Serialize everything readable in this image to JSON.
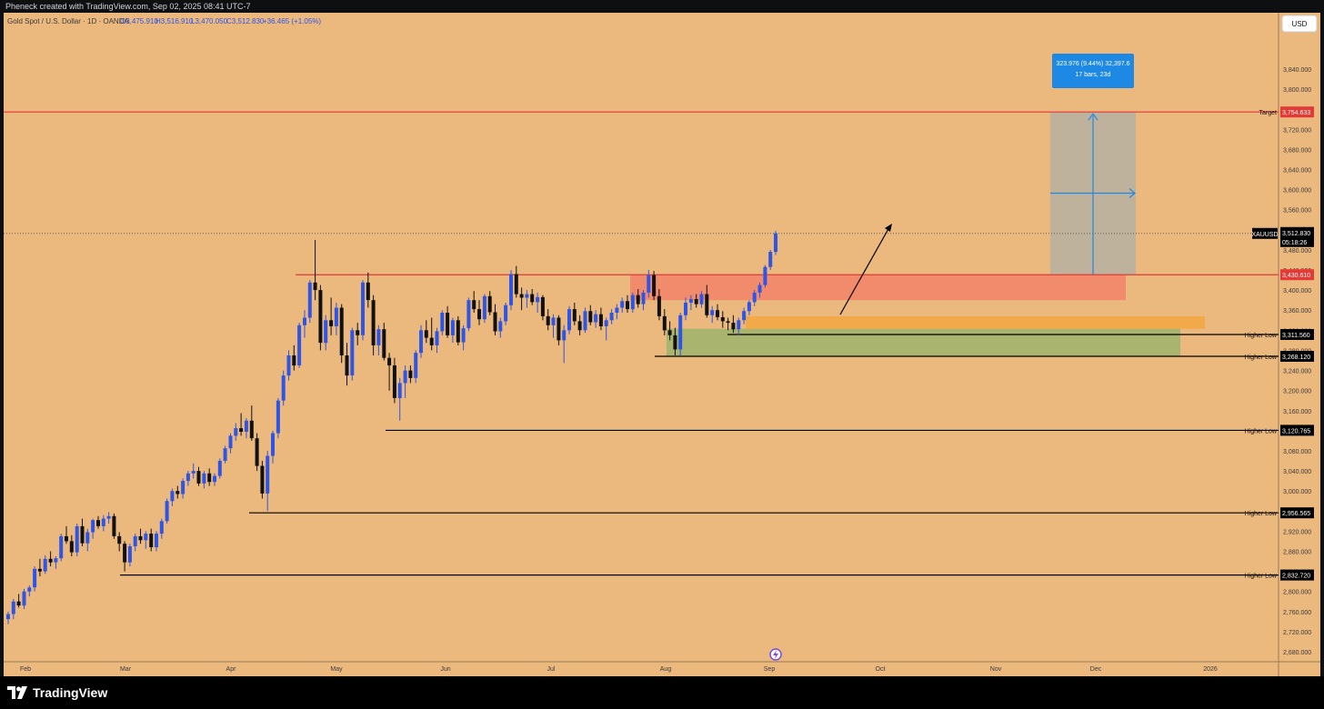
{
  "header": {
    "attribution": "Pheneck created with TradingView.com, Sep 02, 2025 08:41 UTC-7",
    "symbol_line": "Gold Spot / U.S. Dollar · 1D · OANDA",
    "open": "O3,475.910",
    "high": "H3,516.910",
    "low": "L3,470.050",
    "close": "C3,512.830",
    "change": "+36.465 (+1.05%)"
  },
  "currency_button": "USD",
  "footer": {
    "brand": "TradingView"
  },
  "colors": {
    "background": "#ebb87e",
    "bull": "#2f55e6",
    "bear": "#111111",
    "target": "#e53935",
    "supply_zone": "#f28a6c",
    "demand_zone": "#a9b46e",
    "orange_zone": "#f1a94a",
    "projection": "#b7b0a2",
    "measure_blue": "#1e88e5"
  },
  "chart_data": {
    "type": "candlestick",
    "ylim": [
      2660,
      3880
    ],
    "y_ticks": [
      2680,
      2720,
      2760,
      2800,
      2840,
      2880,
      2920,
      2960,
      3000,
      3040,
      3080,
      3120,
      3160,
      3200,
      3240,
      3280,
      3320,
      3360,
      3400,
      3440,
      3480,
      3520,
      3560,
      3600,
      3640,
      3680,
      3720,
      3760,
      3800,
      3840
    ],
    "x_labels": [
      "Feb",
      "Mar",
      "Apr",
      "May",
      "Jun",
      "Jul",
      "Aug",
      "Sep",
      "Oct",
      "Nov",
      "Dec",
      "2026"
    ],
    "current_price": {
      "symbol": "XAUUSD",
      "value": "3,512.830",
      "countdown": "05:18:26"
    },
    "levels": [
      {
        "name": "Target",
        "label": "Target",
        "value": 3754.633,
        "value_text": "3,754.633"
      },
      {
        "name": "resistance",
        "label": "",
        "value": 3430.61,
        "value_text": "3,430.610"
      },
      {
        "name": "higher-low-1",
        "label": "Higher Low",
        "value": 3311.56,
        "value_text": "3,311.560"
      },
      {
        "name": "higher-low-2",
        "label": "Higher Low",
        "value": 3268.12,
        "value_text": "3,268.120"
      },
      {
        "name": "higher-low-3",
        "label": "Higher Low",
        "value": 3120.765,
        "value_text": "3,120.765"
      },
      {
        "name": "higher-low-4",
        "label": "Higher Low",
        "value": 2956.565,
        "value_text": "2,956.565"
      },
      {
        "name": "higher-low-5",
        "label": "Higher Low",
        "value": 2832.72,
        "value_text": "2,832.720"
      }
    ],
    "measure": {
      "line1": "323.976 (9.44%) 32,397.6",
      "line2": "17 bars, 23d"
    },
    "series": [
      {
        "name": "",
        "ohlc": [
          [
            2745,
            2760,
            2735,
            2755
          ],
          [
            2755,
            2785,
            2745,
            2780
          ],
          [
            2780,
            2795,
            2768,
            2772
          ],
          [
            2772,
            2805,
            2765,
            2800
          ],
          [
            2800,
            2812,
            2790,
            2808
          ],
          [
            2808,
            2850,
            2800,
            2845
          ],
          [
            2845,
            2865,
            2830,
            2840
          ],
          [
            2840,
            2872,
            2835,
            2865
          ],
          [
            2865,
            2880,
            2850,
            2858
          ],
          [
            2858,
            2870,
            2845,
            2866
          ],
          [
            2866,
            2915,
            2860,
            2910
          ],
          [
            2910,
            2930,
            2895,
            2900
          ],
          [
            2900,
            2912,
            2870,
            2878
          ],
          [
            2878,
            2935,
            2870,
            2930
          ],
          [
            2930,
            2945,
            2890,
            2896
          ],
          [
            2896,
            2925,
            2880,
            2918
          ],
          [
            2918,
            2945,
            2905,
            2942
          ],
          [
            2942,
            2950,
            2925,
            2930
          ],
          [
            2930,
            2952,
            2920,
            2945
          ],
          [
            2945,
            2958,
            2935,
            2950
          ],
          [
            2950,
            2955,
            2905,
            2910
          ],
          [
            2910,
            2918,
            2880,
            2895
          ],
          [
            2895,
            2900,
            2840,
            2858
          ],
          [
            2858,
            2895,
            2850,
            2890
          ],
          [
            2890,
            2915,
            2880,
            2910
          ],
          [
            2910,
            2925,
            2895,
            2902
          ],
          [
            2902,
            2920,
            2885,
            2915
          ],
          [
            2915,
            2925,
            2880,
            2888
          ],
          [
            2888,
            2920,
            2880,
            2915
          ],
          [
            2915,
            2945,
            2905,
            2940
          ],
          [
            2940,
            2985,
            2935,
            2980
          ],
          [
            2980,
            3005,
            2970,
            3000
          ],
          [
            3000,
            3010,
            2985,
            2994
          ],
          [
            2994,
            3025,
            2985,
            3020
          ],
          [
            3020,
            3040,
            3010,
            3035
          ],
          [
            3035,
            3055,
            3025,
            3040
          ],
          [
            3040,
            3048,
            3010,
            3015
          ],
          [
            3015,
            3040,
            3005,
            3035
          ],
          [
            3035,
            3045,
            3010,
            3018
          ],
          [
            3018,
            3035,
            3010,
            3030
          ],
          [
            3030,
            3065,
            3025,
            3060
          ],
          [
            3060,
            3090,
            3055,
            3085
          ],
          [
            3085,
            3115,
            3075,
            3110
          ],
          [
            3110,
            3135,
            3100,
            3125
          ],
          [
            3125,
            3155,
            3110,
            3118
          ],
          [
            3118,
            3145,
            3105,
            3140
          ],
          [
            3140,
            3170,
            3100,
            3105
          ],
          [
            3105,
            3115,
            3040,
            3050
          ],
          [
            3050,
            3060,
            2985,
            2995
          ],
          [
            2995,
            3080,
            2960,
            3070
          ],
          [
            3070,
            3120,
            3055,
            3115
          ],
          [
            3115,
            3185,
            3105,
            3180
          ],
          [
            3180,
            3240,
            3170,
            3230
          ],
          [
            3230,
            3280,
            3220,
            3270
          ],
          [
            3270,
            3290,
            3240,
            3250
          ],
          [
            3250,
            3335,
            3245,
            3330
          ],
          [
            3330,
            3360,
            3305,
            3345
          ],
          [
            3345,
            3420,
            3335,
            3415
          ],
          [
            3415,
            3500,
            3380,
            3400
          ],
          [
            3400,
            3410,
            3280,
            3295
          ],
          [
            3295,
            3350,
            3280,
            3340
          ],
          [
            3340,
            3385,
            3310,
            3328
          ],
          [
            3328,
            3375,
            3310,
            3365
          ],
          [
            3365,
            3372,
            3255,
            3270
          ],
          [
            3270,
            3295,
            3210,
            3230
          ],
          [
            3230,
            3325,
            3220,
            3320
          ],
          [
            3320,
            3335,
            3290,
            3310
          ],
          [
            3310,
            3420,
            3300,
            3415
          ],
          [
            3415,
            3435,
            3365,
            3380
          ],
          [
            3380,
            3390,
            3270,
            3290
          ],
          [
            3290,
            3330,
            3270,
            3322
          ],
          [
            3322,
            3335,
            3260,
            3265
          ],
          [
            3265,
            3275,
            3200,
            3250
          ],
          [
            3250,
            3265,
            3175,
            3185
          ],
          [
            3185,
            3225,
            3140,
            3215
          ],
          [
            3215,
            3250,
            3185,
            3240
          ],
          [
            3240,
            3250,
            3215,
            3225
          ],
          [
            3225,
            3280,
            3215,
            3275
          ],
          [
            3275,
            3330,
            3265,
            3320
          ],
          [
            3320,
            3340,
            3295,
            3305
          ],
          [
            3305,
            3345,
            3280,
            3290
          ],
          [
            3290,
            3325,
            3275,
            3318
          ],
          [
            3318,
            3360,
            3310,
            3355
          ],
          [
            3355,
            3368,
            3305,
            3310
          ],
          [
            3310,
            3345,
            3295,
            3340
          ],
          [
            3340,
            3348,
            3290,
            3296
          ],
          [
            3296,
            3330,
            3280,
            3324
          ],
          [
            3324,
            3385,
            3318,
            3380
          ],
          [
            3380,
            3398,
            3355,
            3362
          ],
          [
            3362,
            3380,
            3330,
            3342
          ],
          [
            3342,
            3392,
            3335,
            3388
          ],
          [
            3388,
            3398,
            3350,
            3356
          ],
          [
            3356,
            3372,
            3310,
            3318
          ],
          [
            3318,
            3345,
            3305,
            3338
          ],
          [
            3338,
            3375,
            3330,
            3370
          ],
          [
            3370,
            3440,
            3360,
            3432
          ],
          [
            3432,
            3448,
            3385,
            3392
          ],
          [
            3392,
            3405,
            3360,
            3385
          ],
          [
            3385,
            3400,
            3365,
            3392
          ],
          [
            3392,
            3402,
            3370,
            3376
          ],
          [
            3376,
            3395,
            3355,
            3386
          ],
          [
            3386,
            3390,
            3340,
            3348
          ],
          [
            3348,
            3362,
            3320,
            3330
          ],
          [
            3330,
            3352,
            3305,
            3345
          ],
          [
            3345,
            3350,
            3290,
            3300
          ],
          [
            3300,
            3330,
            3255,
            3320
          ],
          [
            3320,
            3368,
            3312,
            3362
          ],
          [
            3362,
            3375,
            3330,
            3338
          ],
          [
            3338,
            3350,
            3310,
            3320
          ],
          [
            3320,
            3365,
            3315,
            3358
          ],
          [
            3358,
            3370,
            3330,
            3336
          ],
          [
            3336,
            3360,
            3325,
            3352
          ],
          [
            3352,
            3365,
            3320,
            3328
          ],
          [
            3328,
            3345,
            3300,
            3340
          ],
          [
            3340,
            3362,
            3332,
            3355
          ],
          [
            3355,
            3372,
            3342,
            3365
          ],
          [
            3365,
            3385,
            3355,
            3378
          ],
          [
            3378,
            3390,
            3355,
            3362
          ],
          [
            3362,
            3395,
            3355,
            3390
          ],
          [
            3390,
            3402,
            3365,
            3372
          ],
          [
            3372,
            3400,
            3360,
            3395
          ],
          [
            3395,
            3440,
            3385,
            3430
          ],
          [
            3430,
            3438,
            3380,
            3388
          ],
          [
            3388,
            3402,
            3340,
            3348
          ],
          [
            3348,
            3362,
            3310,
            3320
          ],
          [
            3320,
            3338,
            3300,
            3310
          ],
          [
            3310,
            3325,
            3270,
            3282
          ],
          [
            3282,
            3355,
            3270,
            3350
          ],
          [
            3350,
            3385,
            3340,
            3375
          ],
          [
            3375,
            3390,
            3360,
            3382
          ],
          [
            3382,
            3392,
            3365,
            3372
          ],
          [
            3372,
            3398,
            3365,
            3392
          ],
          [
            3392,
            3410,
            3345,
            3350
          ],
          [
            3350,
            3368,
            3335,
            3360
          ],
          [
            3360,
            3372,
            3340,
            3346
          ],
          [
            3346,
            3358,
            3325,
            3338
          ],
          [
            3338,
            3345,
            3320,
            3335
          ],
          [
            3335,
            3350,
            3315,
            3322
          ],
          [
            3322,
            3345,
            3310,
            3340
          ],
          [
            3340,
            3365,
            3332,
            3358
          ],
          [
            3358,
            3380,
            3350,
            3376
          ],
          [
            3376,
            3400,
            3368,
            3395
          ],
          [
            3395,
            3415,
            3385,
            3410
          ],
          [
            3410,
            3450,
            3405,
            3446
          ],
          [
            3446,
            3480,
            3440,
            3476
          ],
          [
            3476,
            3518,
            3470,
            3513
          ]
        ]
      }
    ]
  }
}
